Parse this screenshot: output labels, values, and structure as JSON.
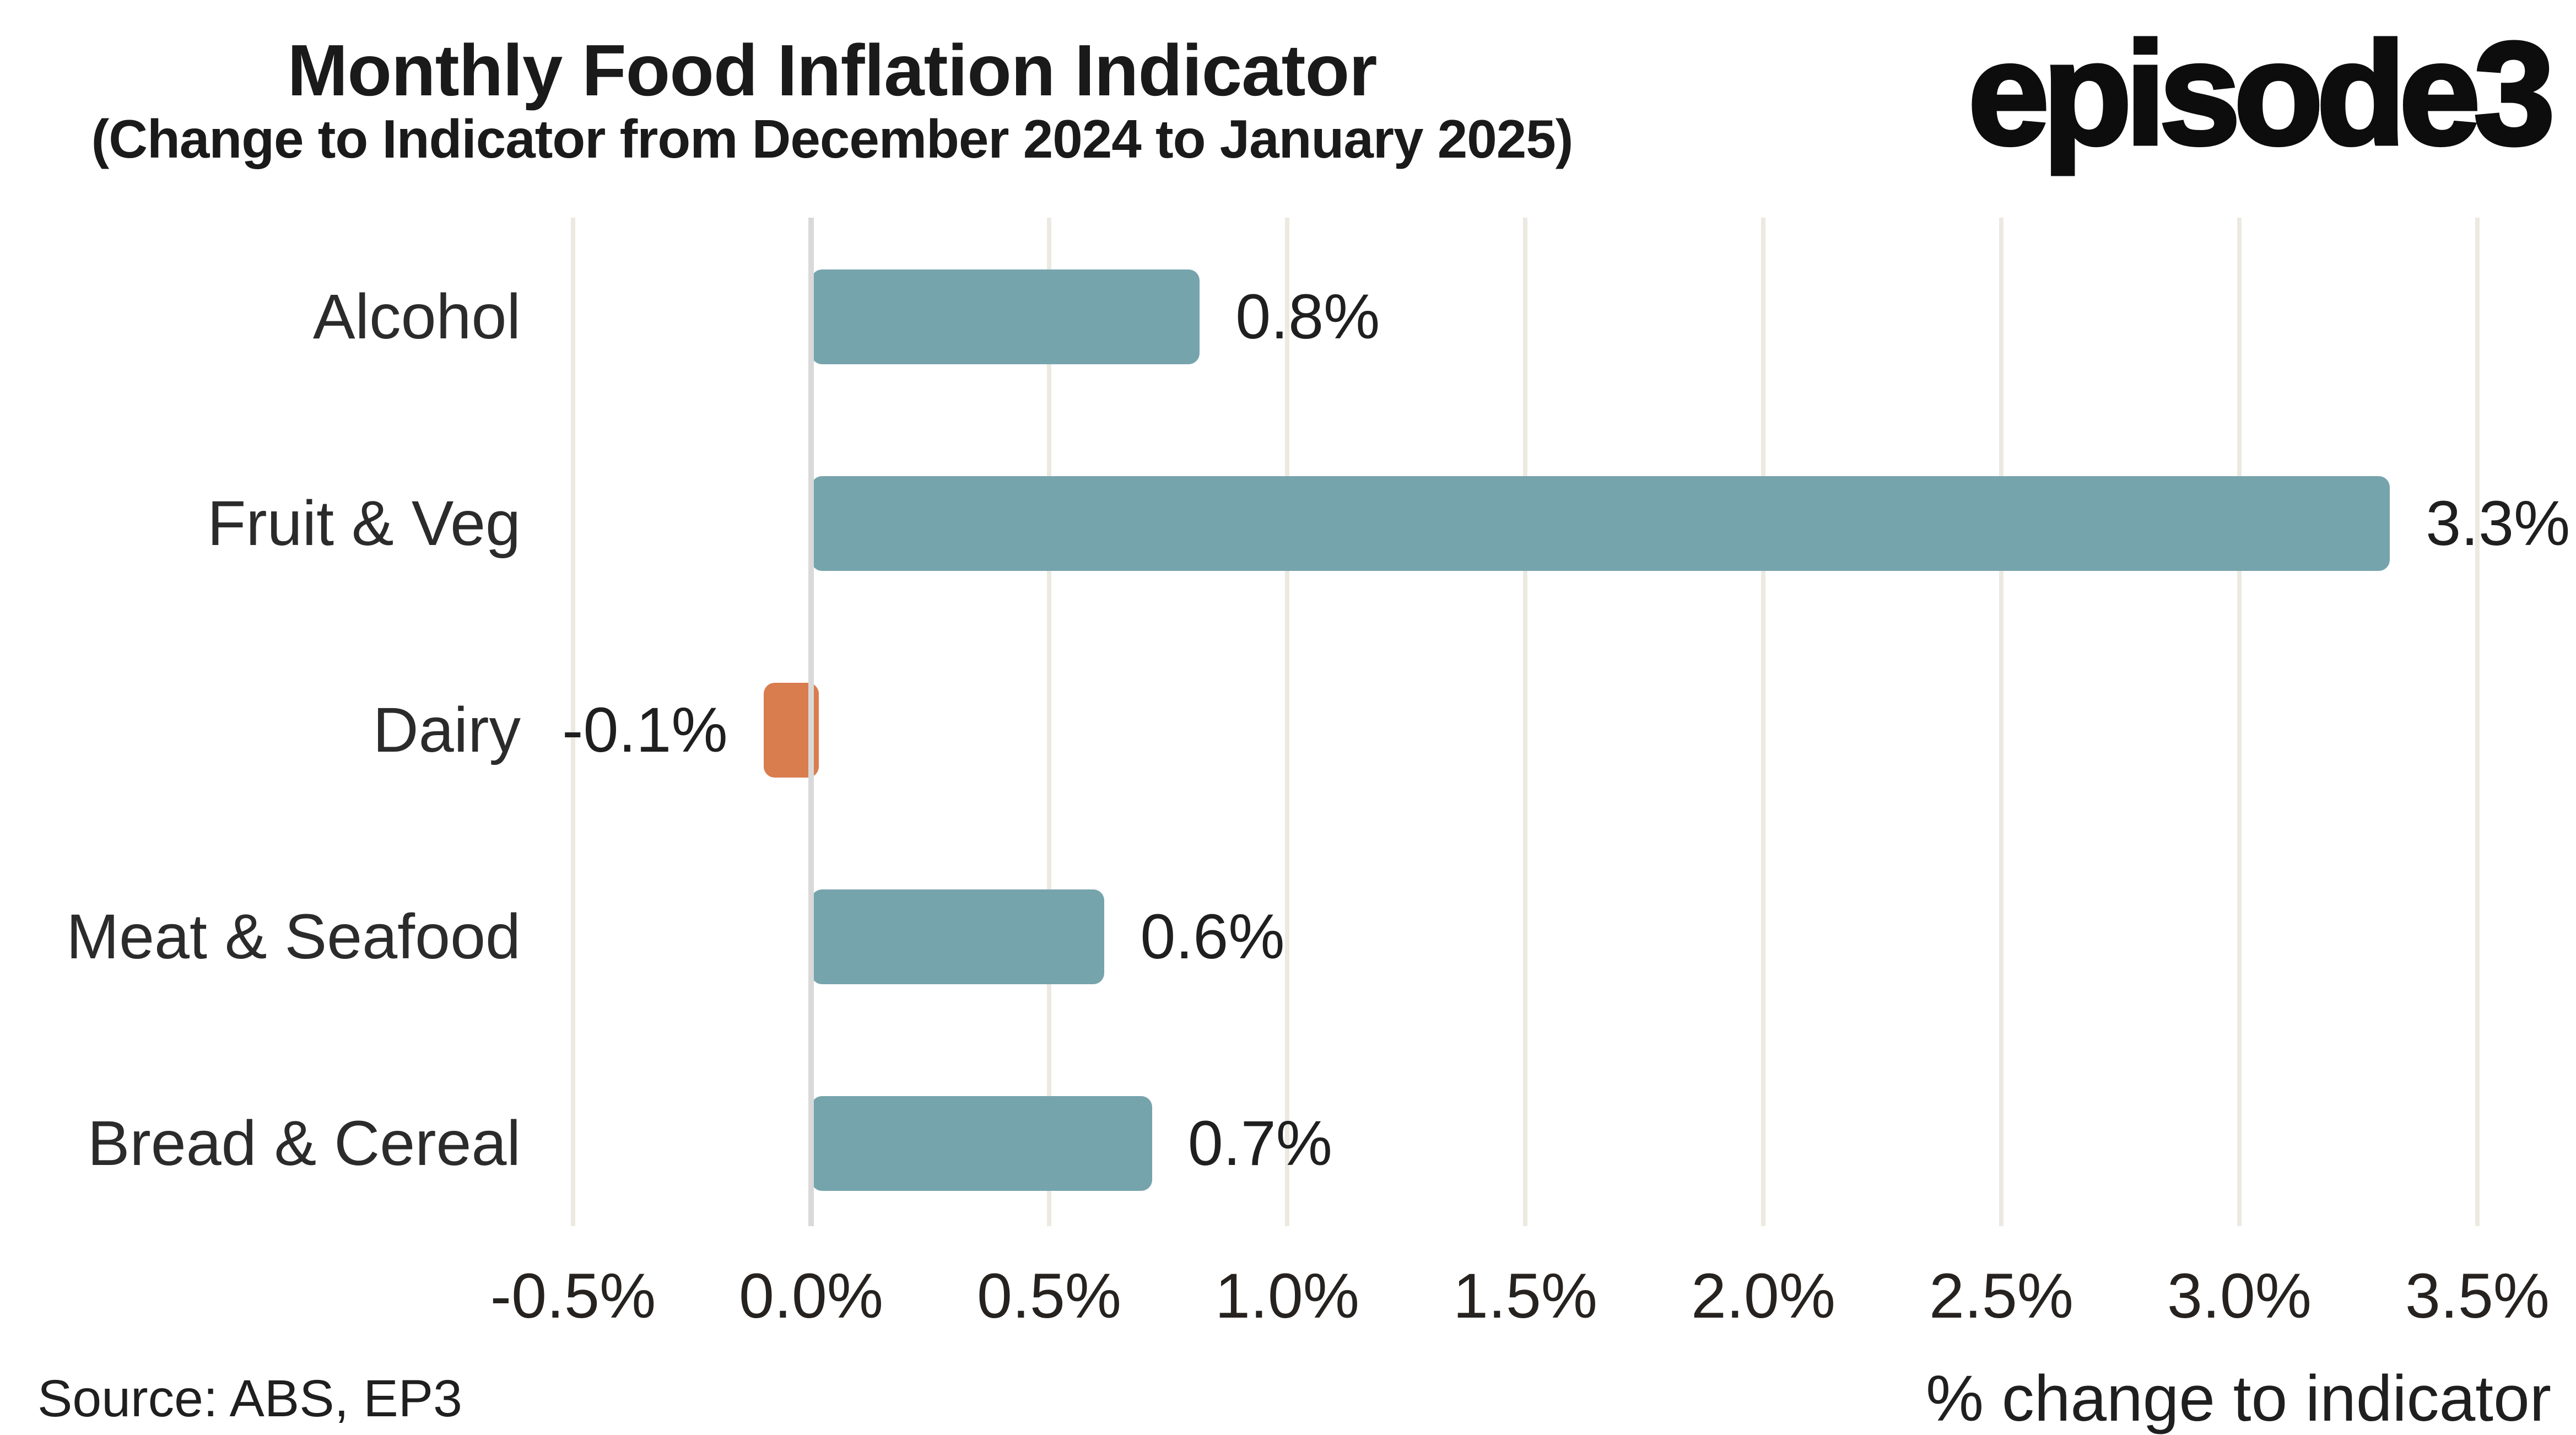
{
  "header": {
    "title": "Monthly Food Inflation Indicator",
    "subtitle": "(Change to Indicator from December 2024 to January 2025)",
    "logo": "episode3"
  },
  "footer": {
    "source": "Source: ABS, EP3",
    "xaxis_label": "% change to indicator"
  },
  "chart_data": {
    "type": "bar",
    "orientation": "horizontal",
    "title": "Monthly Food Inflation Indicator",
    "subtitle": "(Change to Indicator from December 2024 to January 2025)",
    "categories": [
      "Alcohol",
      "Fruit & Veg",
      "Dairy",
      "Meat & Seafood",
      "Bread & Cereal"
    ],
    "values": [
      0.8,
      3.3,
      -0.1,
      0.6,
      0.7
    ],
    "value_labels": [
      "0.8%",
      "3.3%",
      "-0.1%",
      "0.6%",
      "0.7%"
    ],
    "xlabel": "% change to indicator",
    "ylabel": "",
    "x_ticks": [
      -0.5,
      0.0,
      0.5,
      1.0,
      1.5,
      2.0,
      2.5,
      3.0,
      3.5
    ],
    "x_tick_labels": [
      "-0.5%",
      "0.0%",
      "0.5%",
      "1.0%",
      "1.5%",
      "2.0%",
      "2.5%",
      "3.0%",
      "3.5%"
    ],
    "xlim": [
      -0.75,
      3.7
    ],
    "grid": "vertical-only",
    "legend": "none",
    "colors": {
      "positive_bar": "#76a4ad",
      "negative_bar": "#d97c4e",
      "gridline": "#ebe9e0",
      "zeroline": "#d9d9d9",
      "text": "#262626",
      "background": "#ffffff"
    }
  }
}
